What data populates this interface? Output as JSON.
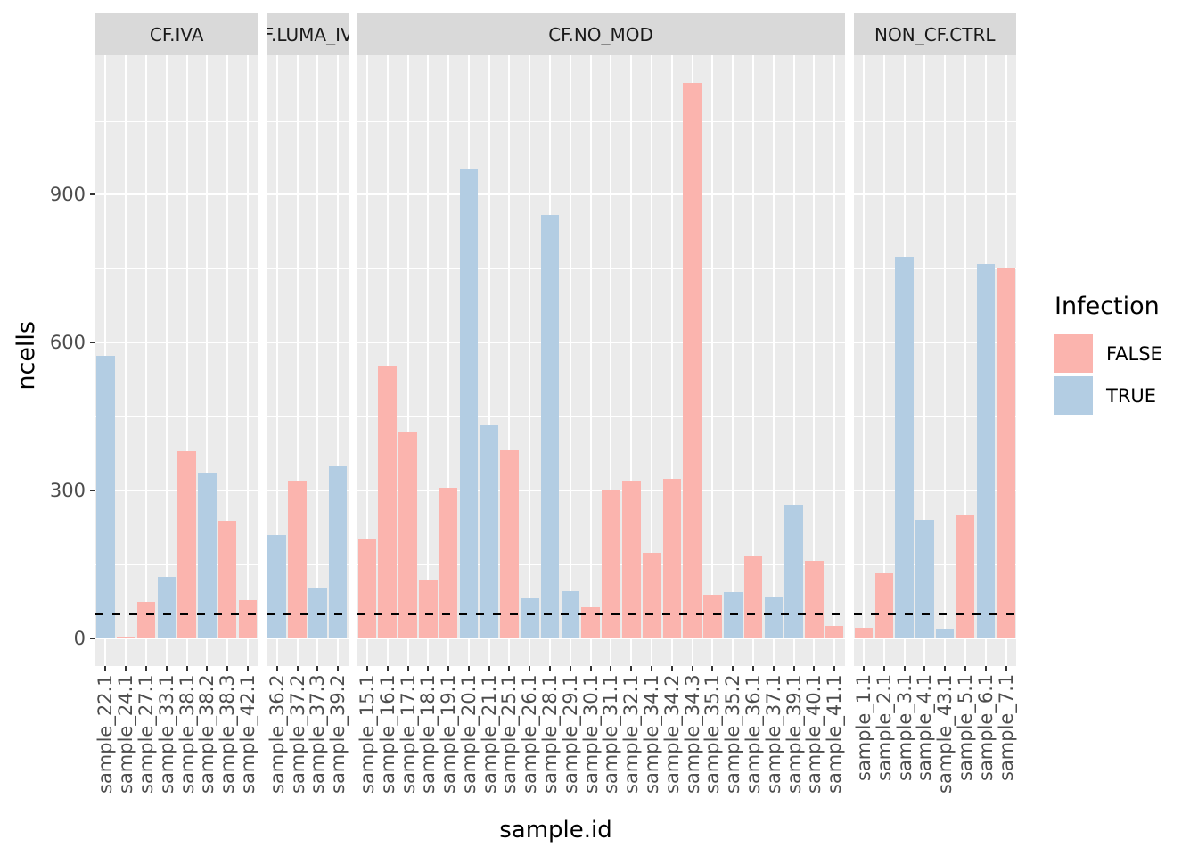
{
  "chart_data": {
    "type": "bar",
    "title": "",
    "xlabel": "sample.id",
    "ylabel": "ncells",
    "y_ticks": [
      0,
      300,
      600,
      900
    ],
    "ylim": [
      -56,
      1183
    ],
    "grid": "on",
    "x_tick_rotation": 90,
    "hline": {
      "value": 50,
      "linetype": "dashed",
      "color": "#000000"
    },
    "colors": {
      "panel_bg": "#ebebeb",
      "strip_bg": "#d9d9d9",
      "gridline": "#ffffff",
      "axis_text": "#4d4d4d",
      "false_fill": "#FBB4AE",
      "true_fill": "#B3CDE3"
    },
    "legend": {
      "title": "Infection",
      "position": "right",
      "entries": [
        {
          "label": "FALSE",
          "color": "#FBB4AE"
        },
        {
          "label": "TRUE",
          "color": "#B3CDE3"
        }
      ]
    },
    "facets": [
      {
        "label": "CF.IVA",
        "bars": [
          {
            "id": "sample_22.1",
            "value": 573,
            "infection": "TRUE"
          },
          {
            "id": "sample_24.1",
            "value": 4,
            "infection": "FALSE"
          },
          {
            "id": "sample_27.1",
            "value": 74,
            "infection": "FALSE"
          },
          {
            "id": "sample_33.1",
            "value": 125,
            "infection": "TRUE"
          },
          {
            "id": "sample_38.1",
            "value": 380,
            "infection": "FALSE"
          },
          {
            "id": "sample_38.2",
            "value": 337,
            "infection": "TRUE"
          },
          {
            "id": "sample_38.3",
            "value": 238,
            "infection": "FALSE"
          },
          {
            "id": "sample_42.1",
            "value": 78,
            "infection": "FALSE"
          }
        ]
      },
      {
        "label": "CF.LUMA_IVA",
        "bars": [
          {
            "id": "sample_36.2",
            "value": 210,
            "infection": "TRUE"
          },
          {
            "id": "sample_37.2",
            "value": 320,
            "infection": "FALSE"
          },
          {
            "id": "sample_37.3",
            "value": 104,
            "infection": "TRUE"
          },
          {
            "id": "sample_39.2",
            "value": 349,
            "infection": "TRUE"
          }
        ]
      },
      {
        "label": "CF.NO_MOD",
        "bars": [
          {
            "id": "sample_15.1",
            "value": 200,
            "infection": "FALSE"
          },
          {
            "id": "sample_16.1",
            "value": 552,
            "infection": "FALSE"
          },
          {
            "id": "sample_17.1",
            "value": 419,
            "infection": "FALSE"
          },
          {
            "id": "sample_18.1",
            "value": 120,
            "infection": "FALSE"
          },
          {
            "id": "sample_19.1",
            "value": 305,
            "infection": "FALSE"
          },
          {
            "id": "sample_20.1",
            "value": 954,
            "infection": "TRUE"
          },
          {
            "id": "sample_21.1",
            "value": 433,
            "infection": "TRUE"
          },
          {
            "id": "sample_25.1",
            "value": 382,
            "infection": "FALSE"
          },
          {
            "id": "sample_26.1",
            "value": 81,
            "infection": "TRUE"
          },
          {
            "id": "sample_28.1",
            "value": 859,
            "infection": "TRUE"
          },
          {
            "id": "sample_29.1",
            "value": 96,
            "infection": "TRUE"
          },
          {
            "id": "sample_30.1",
            "value": 63,
            "infection": "FALSE"
          },
          {
            "id": "sample_31.1",
            "value": 301,
            "infection": "FALSE"
          },
          {
            "id": "sample_32.1",
            "value": 320,
            "infection": "FALSE"
          },
          {
            "id": "sample_34.1",
            "value": 174,
            "infection": "FALSE"
          },
          {
            "id": "sample_34.2",
            "value": 323,
            "infection": "FALSE"
          },
          {
            "id": "sample_34.3",
            "value": 1127,
            "infection": "FALSE"
          },
          {
            "id": "sample_35.1",
            "value": 88,
            "infection": "FALSE"
          },
          {
            "id": "sample_35.2",
            "value": 95,
            "infection": "TRUE"
          },
          {
            "id": "sample_36.1",
            "value": 167,
            "infection": "FALSE"
          },
          {
            "id": "sample_37.1",
            "value": 85,
            "infection": "TRUE"
          },
          {
            "id": "sample_39.1",
            "value": 271,
            "infection": "TRUE"
          },
          {
            "id": "sample_40.1",
            "value": 158,
            "infection": "FALSE"
          },
          {
            "id": "sample_41.1",
            "value": 26,
            "infection": "FALSE"
          }
        ]
      },
      {
        "label": "NON_CF.CTRL",
        "bars": [
          {
            "id": "sample_1.1",
            "value": 22,
            "infection": "FALSE"
          },
          {
            "id": "sample_2.1",
            "value": 132,
            "infection": "FALSE"
          },
          {
            "id": "sample_3.1",
            "value": 775,
            "infection": "TRUE"
          },
          {
            "id": "sample_4.1",
            "value": 240,
            "infection": "TRUE"
          },
          {
            "id": "sample_43.1",
            "value": 20,
            "infection": "TRUE"
          },
          {
            "id": "sample_5.1",
            "value": 250,
            "infection": "FALSE"
          },
          {
            "id": "sample_6.1",
            "value": 760,
            "infection": "TRUE"
          },
          {
            "id": "sample_7.1",
            "value": 752,
            "infection": "FALSE"
          }
        ]
      }
    ]
  }
}
